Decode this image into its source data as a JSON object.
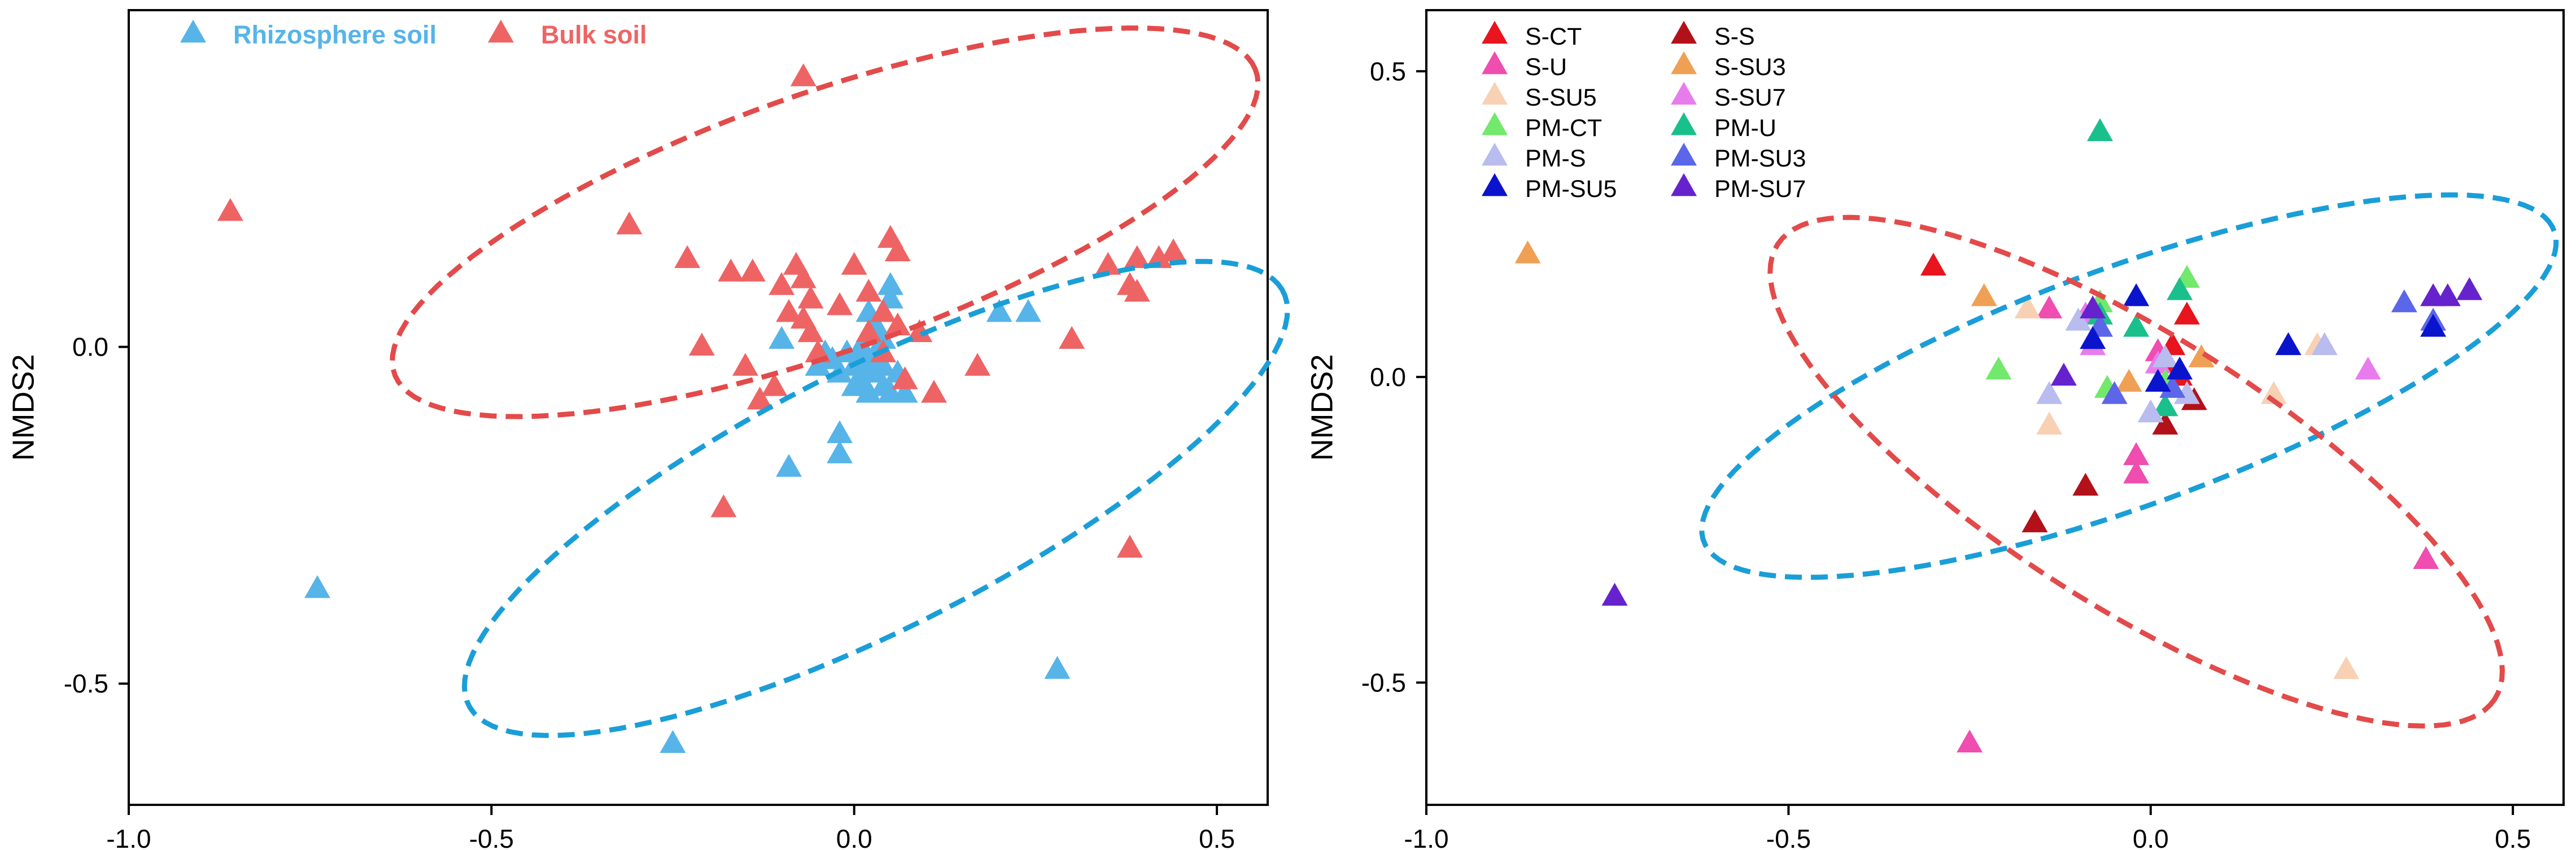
{
  "chart_data": [
    {
      "type": "scatter",
      "title": "",
      "xlabel": "",
      "ylabel": "NMDS2",
      "xlim": [
        -1.0,
        0.57
      ],
      "ylim": [
        -0.68,
        0.5
      ],
      "xticks": [
        -1.0,
        -0.5,
        0.0,
        0.5
      ],
      "xtick_labels": [
        "-1.0",
        "-0.5",
        "0.0",
        "0.5"
      ],
      "yticks": [
        0.0,
        -0.5
      ],
      "ytick_labels": [
        "0.0",
        "-0.5"
      ],
      "grid": false,
      "legend_position": "top-left",
      "series": [
        {
          "name": "Rhizosphere soil",
          "color": "#56b4e9",
          "label_color": "#56b4e9",
          "points": [
            [
              -0.74,
              -0.36
            ],
            [
              -0.25,
              -0.59
            ],
            [
              0.28,
              -0.48
            ],
            [
              -0.09,
              -0.18
            ],
            [
              -0.02,
              -0.16
            ],
            [
              -0.02,
              -0.13
            ],
            [
              -0.1,
              0.01
            ],
            [
              -0.05,
              -0.03
            ],
            [
              -0.03,
              -0.02
            ],
            [
              -0.02,
              -0.04
            ],
            [
              -0.01,
              -0.01
            ],
            [
              0.0,
              -0.03
            ],
            [
              0.0,
              -0.06
            ],
            [
              0.01,
              -0.05
            ],
            [
              0.01,
              -0.02
            ],
            [
              0.02,
              -0.03
            ],
            [
              0.02,
              -0.07
            ],
            [
              0.03,
              -0.04
            ],
            [
              0.03,
              -0.01
            ],
            [
              0.04,
              -0.06
            ],
            [
              0.04,
              -0.03
            ],
            [
              0.05,
              -0.07
            ],
            [
              0.06,
              -0.04
            ],
            [
              0.07,
              -0.07
            ],
            [
              0.03,
              0.03
            ],
            [
              0.02,
              0.05
            ],
            [
              0.04,
              0.01
            ],
            [
              0.05,
              0.07
            ],
            [
              0.05,
              0.09
            ],
            [
              0.2,
              0.05
            ],
            [
              0.24,
              0.05
            ],
            [
              -0.04,
              -0.01
            ],
            [
              0.01,
              0.0
            ]
          ]
        },
        {
          "name": "Bulk soil",
          "color": "#ee6464",
          "label_color": "#ee6464",
          "points": [
            [
              -0.86,
              0.2
            ],
            [
              -0.07,
              0.4
            ],
            [
              -0.31,
              0.18
            ],
            [
              -0.23,
              0.13
            ],
            [
              -0.17,
              0.11
            ],
            [
              -0.14,
              0.11
            ],
            [
              -0.1,
              0.09
            ],
            [
              -0.08,
              0.12
            ],
            [
              -0.07,
              0.1
            ],
            [
              -0.06,
              0.07
            ],
            [
              -0.09,
              0.05
            ],
            [
              -0.07,
              0.04
            ],
            [
              -0.02,
              0.06
            ],
            [
              0.0,
              0.12
            ],
            [
              0.02,
              0.08
            ],
            [
              0.05,
              0.16
            ],
            [
              0.06,
              0.14
            ],
            [
              0.04,
              0.05
            ],
            [
              0.06,
              0.03
            ],
            [
              0.09,
              0.02
            ],
            [
              -0.15,
              -0.03
            ],
            [
              -0.13,
              -0.08
            ],
            [
              -0.18,
              -0.24
            ],
            [
              -0.11,
              -0.06
            ],
            [
              -0.05,
              -0.01
            ],
            [
              0.02,
              0.02
            ],
            [
              0.04,
              -0.01
            ],
            [
              0.07,
              -0.05
            ],
            [
              0.11,
              -0.07
            ],
            [
              0.17,
              -0.03
            ],
            [
              0.3,
              0.01
            ],
            [
              0.35,
              0.12
            ],
            [
              0.38,
              0.09
            ],
            [
              0.39,
              0.13
            ],
            [
              0.42,
              0.13
            ],
            [
              0.44,
              0.14
            ],
            [
              0.39,
              0.08
            ],
            [
              0.38,
              -0.3
            ],
            [
              -0.21,
              0.0
            ],
            [
              -0.06,
              0.02
            ]
          ]
        }
      ],
      "ellipses": [
        {
          "name": "bulk-soil-ellipse",
          "color": "#e34a4a",
          "cx": -0.04,
          "cy": 0.185,
          "rx": 0.635,
          "ry": 0.19,
          "angle_deg": 21.0
        },
        {
          "name": "rhizosphere-soil-ellipse",
          "color": "#1a9ed8",
          "cx": 0.03,
          "cy": -0.225,
          "rx": 0.64,
          "ry": 0.19,
          "angle_deg": 29.0
        }
      ]
    },
    {
      "type": "scatter",
      "title": "",
      "xlabel": "",
      "ylabel": "NMDS2",
      "xlim": [
        -1.0,
        0.57
      ],
      "ylim": [
        -0.7,
        0.6
      ],
      "xticks": [
        -1.0,
        -0.5,
        0.0,
        0.5
      ],
      "xtick_labels": [
        "-1.0",
        "-0.5",
        "0.0",
        "0.5"
      ],
      "yticks": [
        0.5,
        0.0,
        -0.5
      ],
      "ytick_labels": [
        "0.5",
        "0.0",
        "-0.5"
      ],
      "grid": false,
      "legend_position": "top-left",
      "series": [
        {
          "name": "S-CT",
          "color": "#e8141e",
          "points": [
            [
              -0.3,
              0.18
            ],
            [
              0.03,
              0.05
            ],
            [
              0.05,
              0.1
            ],
            [
              0.02,
              0.02
            ],
            [
              0.04,
              0.0
            ]
          ]
        },
        {
          "name": "S-S",
          "color": "#b3111a",
          "points": [
            [
              -0.16,
              -0.24
            ],
            [
              -0.09,
              -0.18
            ],
            [
              0.06,
              -0.04
            ],
            [
              0.02,
              -0.08
            ]
          ]
        },
        {
          "name": "S-U",
          "color": "#ef4db0",
          "points": [
            [
              -0.25,
              -0.6
            ],
            [
              0.38,
              -0.3
            ],
            [
              -0.02,
              -0.16
            ],
            [
              -0.02,
              -0.13
            ],
            [
              0.01,
              0.04
            ],
            [
              -0.14,
              0.11
            ]
          ]
        },
        {
          "name": "S-SU3",
          "color": "#f0a054",
          "points": [
            [
              -0.86,
              0.2
            ],
            [
              -0.23,
              0.13
            ],
            [
              0.07,
              0.03
            ],
            [
              -0.03,
              -0.01
            ]
          ]
        },
        {
          "name": "S-SU5",
          "color": "#f8d1b4",
          "points": [
            [
              0.27,
              -0.48
            ],
            [
              -0.17,
              0.11
            ],
            [
              -0.14,
              -0.08
            ],
            [
              0.17,
              -0.03
            ],
            [
              0.23,
              0.05
            ]
          ]
        },
        {
          "name": "S-SU7",
          "color": "#e87ced",
          "points": [
            [
              0.3,
              0.01
            ],
            [
              -0.08,
              0.05
            ],
            [
              -0.09,
              0.1
            ],
            [
              0.01,
              0.02
            ]
          ]
        },
        {
          "name": "PM-CT",
          "color": "#72e86c",
          "points": [
            [
              -0.21,
              0.01
            ],
            [
              -0.06,
              -0.02
            ],
            [
              0.05,
              0.16
            ],
            [
              -0.07,
              0.12
            ],
            [
              0.02,
              -0.01
            ]
          ]
        },
        {
          "name": "PM-U",
          "color": "#1ac08c",
          "points": [
            [
              -0.07,
              0.4
            ],
            [
              0.04,
              0.14
            ],
            [
              -0.07,
              0.1
            ],
            [
              0.02,
              -0.05
            ],
            [
              -0.02,
              0.08
            ]
          ]
        },
        {
          "name": "PM-S",
          "color": "#b8bcef",
          "points": [
            [
              -0.14,
              -0.03
            ],
            [
              -0.1,
              0.09
            ],
            [
              0.24,
              0.05
            ],
            [
              0.02,
              0.03
            ],
            [
              0.0,
              -0.06
            ],
            [
              0.05,
              -0.03
            ]
          ]
        },
        {
          "name": "PM-SU3",
          "color": "#5b66e8",
          "points": [
            [
              0.35,
              0.12
            ],
            [
              0.39,
              0.09
            ],
            [
              -0.05,
              -0.03
            ],
            [
              -0.07,
              0.08
            ],
            [
              0.03,
              -0.02
            ]
          ]
        },
        {
          "name": "PM-SU5",
          "color": "#0a14cc",
          "points": [
            [
              0.19,
              0.05
            ],
            [
              0.39,
              0.08
            ],
            [
              -0.02,
              0.13
            ],
            [
              -0.08,
              0.06
            ],
            [
              0.01,
              -0.01
            ],
            [
              0.04,
              0.01
            ]
          ]
        },
        {
          "name": "PM-SU7",
          "color": "#6622cc",
          "points": [
            [
              -0.74,
              -0.36
            ],
            [
              0.41,
              0.13
            ],
            [
              0.44,
              0.14
            ],
            [
              0.39,
              0.13
            ],
            [
              -0.08,
              0.11
            ],
            [
              -0.12,
              0.0
            ]
          ]
        }
      ],
      "ellipses": [
        {
          "name": "pm-ellipse",
          "color": "#1a9ed8",
          "cx": -0.03,
          "cy": -0.015,
          "rx": 0.64,
          "ry": 0.19,
          "angle_deg": 24.0
        },
        {
          "name": "s-ellipse",
          "color": "#e34a4a",
          "cx": -0.02,
          "cy": -0.155,
          "rx": 0.62,
          "ry": 0.21,
          "angle_deg": -38.0
        }
      ]
    }
  ]
}
